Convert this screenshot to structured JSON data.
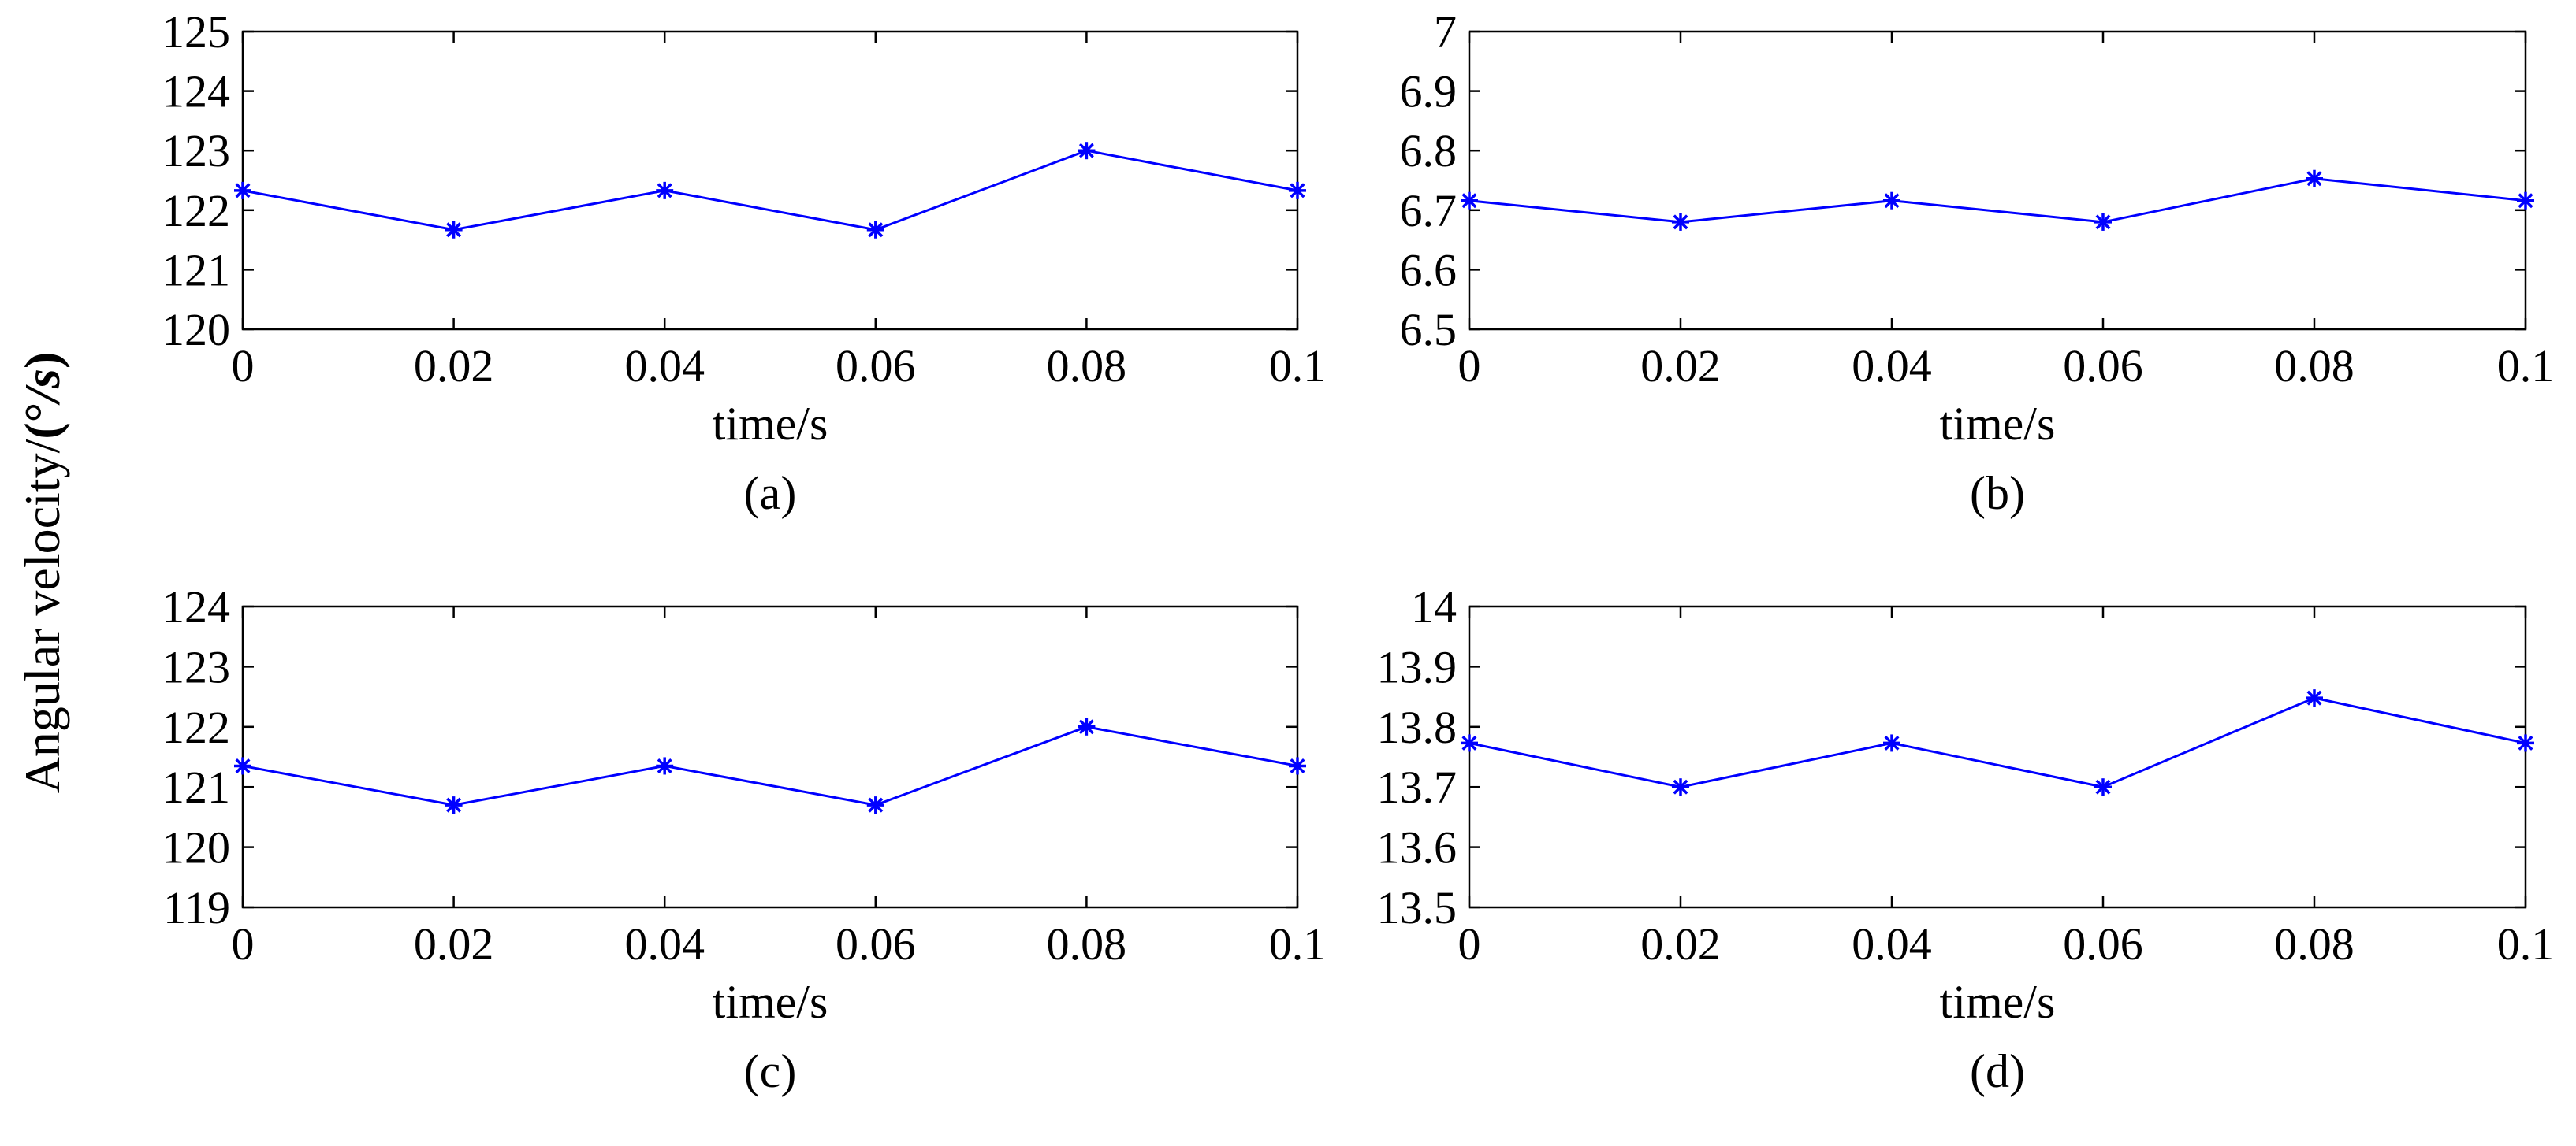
{
  "ylabel": {
    "main": "Angular velocity/",
    "open_paren": "(",
    "degree": "°",
    "slash": "/",
    "s": "s",
    "close_paren": ")"
  },
  "series_color": "#0000ff",
  "chart_data": [
    {
      "id": "a",
      "caption": "(a)",
      "type": "line",
      "xlabel": "time/s",
      "x": [
        0,
        0.02,
        0.04,
        0.06,
        0.08,
        0.1
      ],
      "values": [
        122.33,
        121.67,
        122.33,
        121.67,
        123.0,
        122.33
      ],
      "xlim": [
        0,
        0.1
      ],
      "ylim": [
        120,
        125
      ],
      "xticks": [
        "0",
        "0.02",
        "0.04",
        "0.06",
        "0.08",
        "0.1"
      ],
      "yticks": [
        "120",
        "121",
        "122",
        "123",
        "124",
        "125"
      ],
      "ytick_values": [
        120,
        121,
        122,
        123,
        124,
        125
      ]
    },
    {
      "id": "b",
      "caption": "(b)",
      "type": "line",
      "xlabel": "time/s",
      "x": [
        0,
        0.02,
        0.04,
        0.06,
        0.08,
        0.1
      ],
      "values": [
        6.716,
        6.68,
        6.716,
        6.68,
        6.753,
        6.716
      ],
      "xlim": [
        0,
        0.1
      ],
      "ylim": [
        6.5,
        7.0
      ],
      "xticks": [
        "0",
        "0.02",
        "0.04",
        "0.06",
        "0.08",
        "0.1"
      ],
      "yticks": [
        "6.5",
        "6.6",
        "6.7",
        "6.8",
        "6.9",
        "7"
      ],
      "ytick_values": [
        6.5,
        6.6,
        6.7,
        6.8,
        6.9,
        7.0
      ]
    },
    {
      "id": "c",
      "caption": "(c)",
      "type": "line",
      "xlabel": "time/s",
      "x": [
        0,
        0.02,
        0.04,
        0.06,
        0.08,
        0.1
      ],
      "values": [
        121.35,
        120.7,
        121.35,
        120.7,
        122.0,
        121.35
      ],
      "xlim": [
        0,
        0.1
      ],
      "ylim": [
        119,
        124
      ],
      "xticks": [
        "0",
        "0.02",
        "0.04",
        "0.06",
        "0.08",
        "0.1"
      ],
      "yticks": [
        "119",
        "120",
        "121",
        "122",
        "123",
        "124"
      ],
      "ytick_values": [
        119,
        120,
        121,
        122,
        123,
        124
      ]
    },
    {
      "id": "d",
      "caption": "(d)",
      "type": "line",
      "xlabel": "time/s",
      "x": [
        0,
        0.02,
        0.04,
        0.06,
        0.08,
        0.1
      ],
      "values": [
        13.773,
        13.7,
        13.773,
        13.7,
        13.848,
        13.773
      ],
      "xlim": [
        0,
        0.1
      ],
      "ylim": [
        13.5,
        14.0
      ],
      "xticks": [
        "0",
        "0.02",
        "0.04",
        "0.06",
        "0.08",
        "0.1"
      ],
      "yticks": [
        "13.5",
        "13.6",
        "13.7",
        "13.8",
        "13.9",
        "14"
      ],
      "ytick_values": [
        13.5,
        13.6,
        13.7,
        13.8,
        13.9,
        14.0
      ]
    }
  ]
}
